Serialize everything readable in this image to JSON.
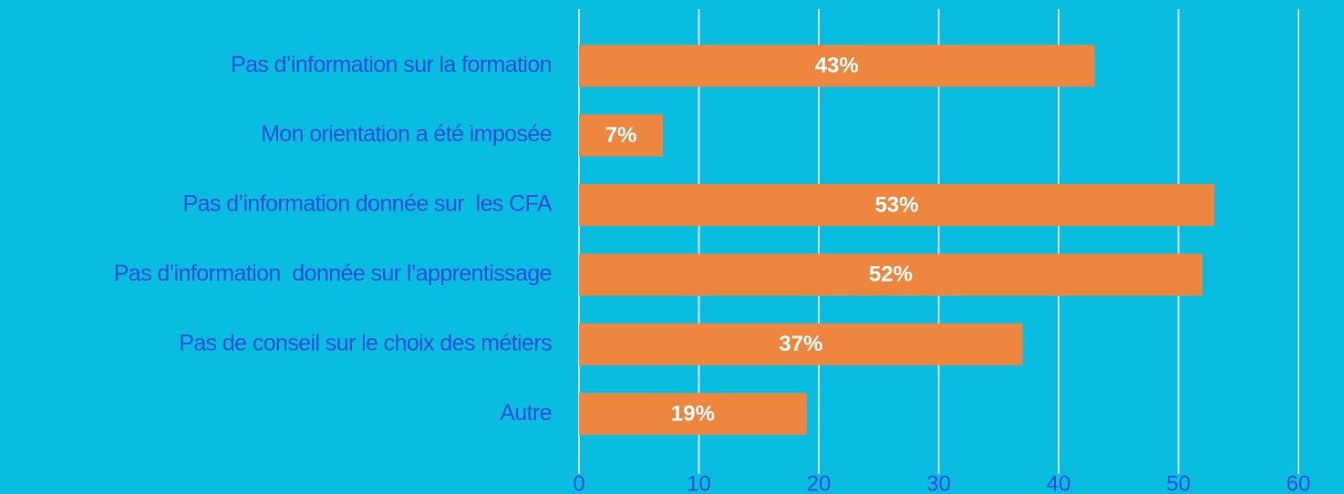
{
  "chart_data": {
    "type": "bar",
    "orientation": "horizontal",
    "categories": [
      "Pas d’information sur la formation",
      "Mon orientation a été imposée",
      "Pas d’information donnée sur  les CFA",
      "Pas d’information  donnée sur l’apprentissage",
      "Pas de conseil sur le choix des métiers",
      "Autre"
    ],
    "values": [
      43,
      7,
      53,
      52,
      37,
      19
    ],
    "value_labels": [
      "43%",
      "7%",
      "53%",
      "52%",
      "37%",
      "19%"
    ],
    "color": "#ee8640",
    "xlim": [
      0,
      60
    ],
    "xticks": [
      0,
      10,
      20,
      30,
      40,
      50,
      60
    ],
    "grid": true
  }
}
